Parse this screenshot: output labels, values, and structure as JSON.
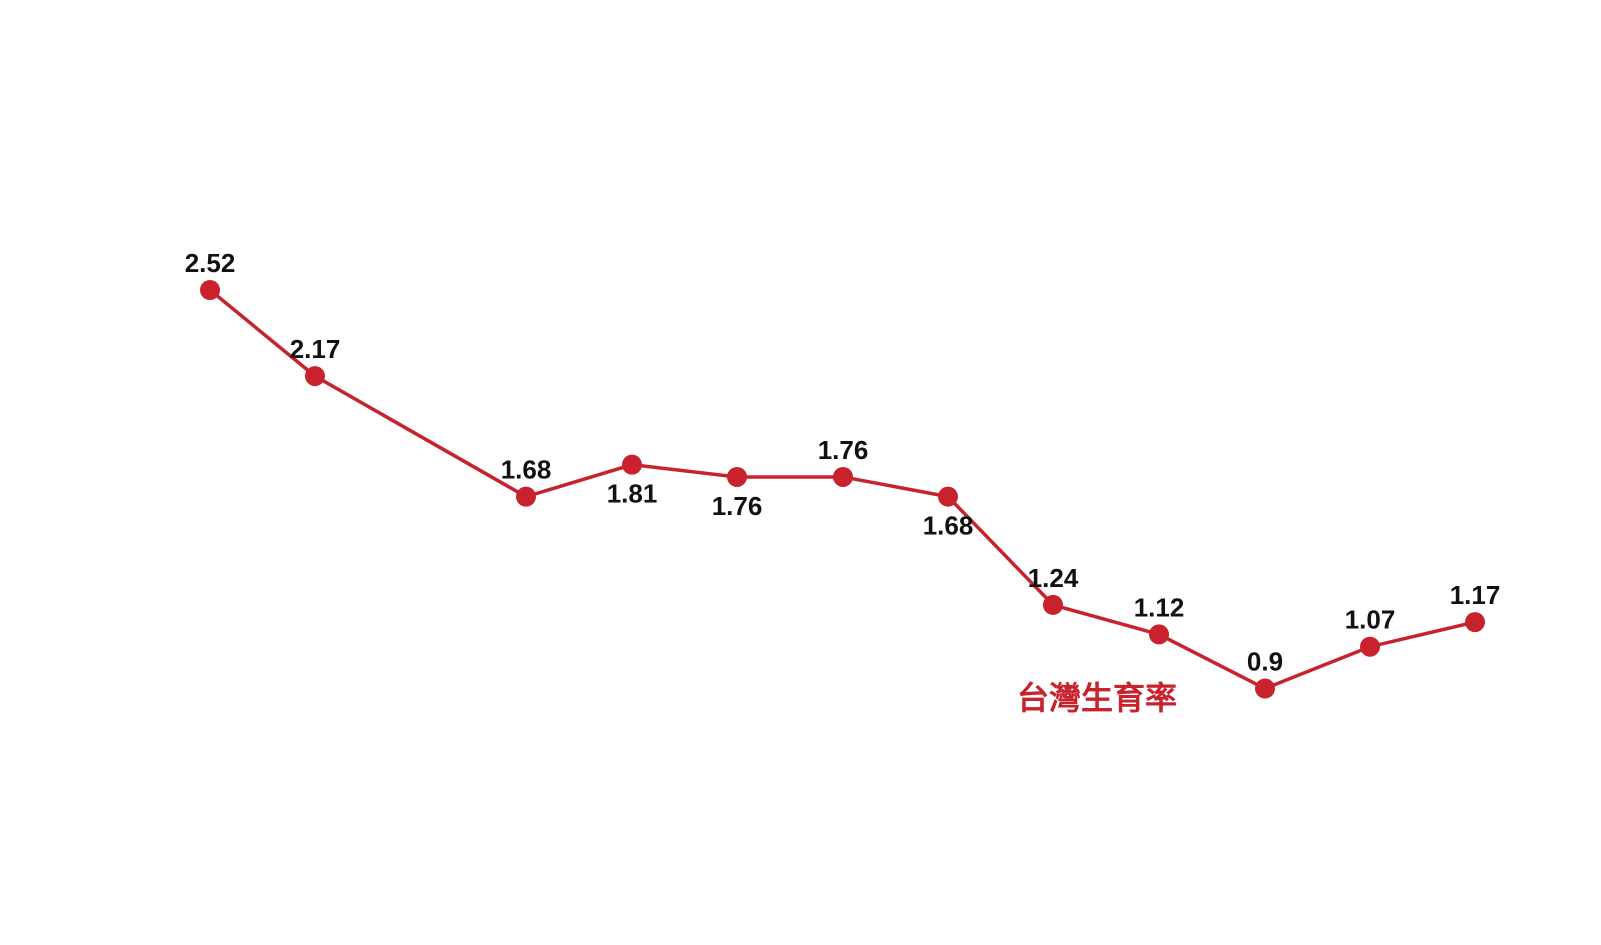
{
  "chart_data": {
    "type": "line",
    "title": "",
    "xlabel": "",
    "ylabel": "",
    "grid": false,
    "ylim": [
      0,
      3.5
    ],
    "series": [
      {
        "name": "台灣生育率",
        "color": "#c8232c",
        "values": [
          2.52,
          2.17,
          1.68,
          1.81,
          1.76,
          1.76,
          1.68,
          1.24,
          1.12,
          0.9,
          1.07,
          1.17
        ],
        "labels": [
          "2.52",
          "2.17",
          "1.68",
          "1.81",
          "1.76",
          "1.76",
          "1.68",
          "1.24",
          "1.12",
          "0.9",
          "1.07",
          "1.17"
        ]
      }
    ],
    "label_positions": [
      "above",
      "above",
      "above",
      "below",
      "below",
      "above",
      "below",
      "above",
      "above",
      "above",
      "above",
      "above"
    ]
  }
}
